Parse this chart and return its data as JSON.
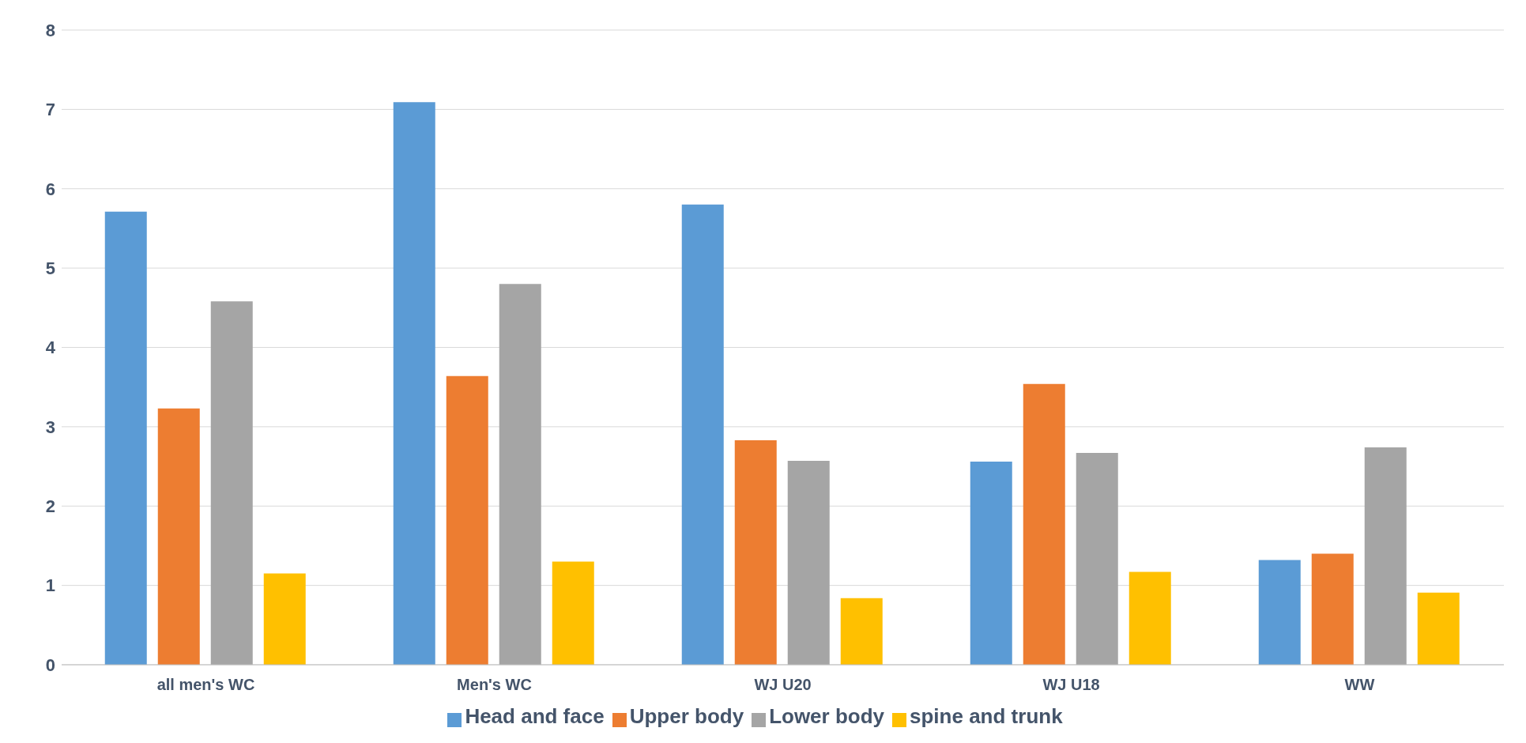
{
  "chart_data": {
    "type": "bar",
    "categories": [
      "all men's WC",
      "Men's WC",
      "WJ U20",
      "WJ U18",
      "WW"
    ],
    "series": [
      {
        "name": "Head and face",
        "color": "#5b9bd5",
        "values": [
          5.71,
          7.09,
          5.8,
          2.56,
          1.32
        ]
      },
      {
        "name": "Upper body",
        "color": "#ed7d31",
        "values": [
          3.23,
          3.64,
          2.83,
          3.54,
          1.4
        ]
      },
      {
        "name": "Lower body",
        "color": "#a5a5a5",
        "values": [
          4.58,
          4.8,
          2.57,
          2.67,
          2.74
        ]
      },
      {
        "name": "spine and trunk",
        "color": "#ffc000",
        "values": [
          1.15,
          1.3,
          0.84,
          1.17,
          0.91
        ]
      }
    ],
    "ylim": [
      0,
      8
    ],
    "yticks": [
      0,
      1,
      2,
      3,
      4,
      5,
      6,
      7,
      8
    ],
    "grid": "y",
    "legend": "bottom"
  }
}
